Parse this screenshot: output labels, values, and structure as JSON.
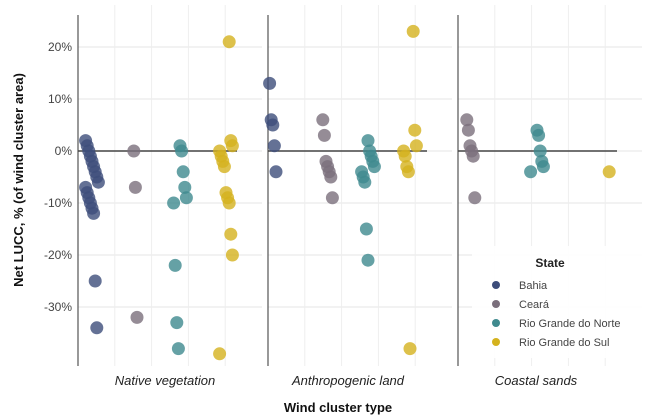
{
  "chart_data": {
    "type": "scatter",
    "xlabel": "Wind cluster type",
    "ylabel": "Net LUCC, % (of wind cluster area)",
    "ylim": [
      -40,
      25
    ],
    "yticks": [
      20,
      10,
      0,
      -10,
      -20,
      -30
    ],
    "ytick_labels": [
      "20%",
      "10%",
      "0%",
      "-10%",
      "-20%",
      "-30%"
    ],
    "grid": true,
    "legend": {
      "title": "State",
      "placement": "bottom-right"
    },
    "facets": [
      "Native vegetation",
      "Anthropogenic land",
      "Coastal sands"
    ],
    "series": [
      {
        "name": "Bahia",
        "color": "#3d4d7a",
        "points": [
          {
            "facet": "Native vegetation",
            "values": [
              2,
              1,
              0,
              -1,
              -2,
              -3,
              -4,
              -5,
              -6,
              -7,
              -8,
              -9,
              -10,
              -11,
              -12,
              -25,
              -34
            ]
          },
          {
            "facet": "Anthropogenic land",
            "values": [
              13,
              6,
              5,
              1,
              -4
            ]
          },
          {
            "facet": "Coastal sands",
            "values": []
          }
        ]
      },
      {
        "name": "Ceará",
        "color": "#7b6f7c",
        "points": [
          {
            "facet": "Native vegetation",
            "values": [
              0,
              -7,
              -32
            ]
          },
          {
            "facet": "Anthropogenic land",
            "values": [
              6,
              3,
              -2,
              -3,
              -4,
              -5,
              -9
            ]
          },
          {
            "facet": "Coastal sands",
            "values": [
              6,
              4,
              1,
              0,
              -1,
              -9
            ]
          }
        ]
      },
      {
        "name": "Rio Grande do Norte",
        "color": "#3f8a8e",
        "points": [
          {
            "facet": "Native vegetation",
            "values": [
              1,
              0,
              -4,
              -7,
              -9,
              -10,
              -22,
              -33,
              -38
            ]
          },
          {
            "facet": "Anthropogenic land",
            "values": [
              2,
              0,
              -1,
              -2,
              -3,
              -4,
              -5,
              -6,
              -15,
              -21
            ]
          },
          {
            "facet": "Coastal sands",
            "values": [
              4,
              3,
              0,
              -2,
              -3,
              -4
            ]
          }
        ]
      },
      {
        "name": "Rio Grande do Sul",
        "color": "#d4b21e",
        "points": [
          {
            "facet": "Native vegetation",
            "values": [
              21,
              2,
              1,
              0,
              -1,
              -2,
              -3,
              -8,
              -9,
              -10,
              -16,
              -20,
              -39
            ]
          },
          {
            "facet": "Anthropogenic land",
            "values": [
              23,
              4,
              1,
              0,
              -1,
              -3,
              -4,
              -38
            ]
          },
          {
            "facet": "Coastal sands",
            "values": [
              -4
            ]
          }
        ]
      }
    ]
  }
}
